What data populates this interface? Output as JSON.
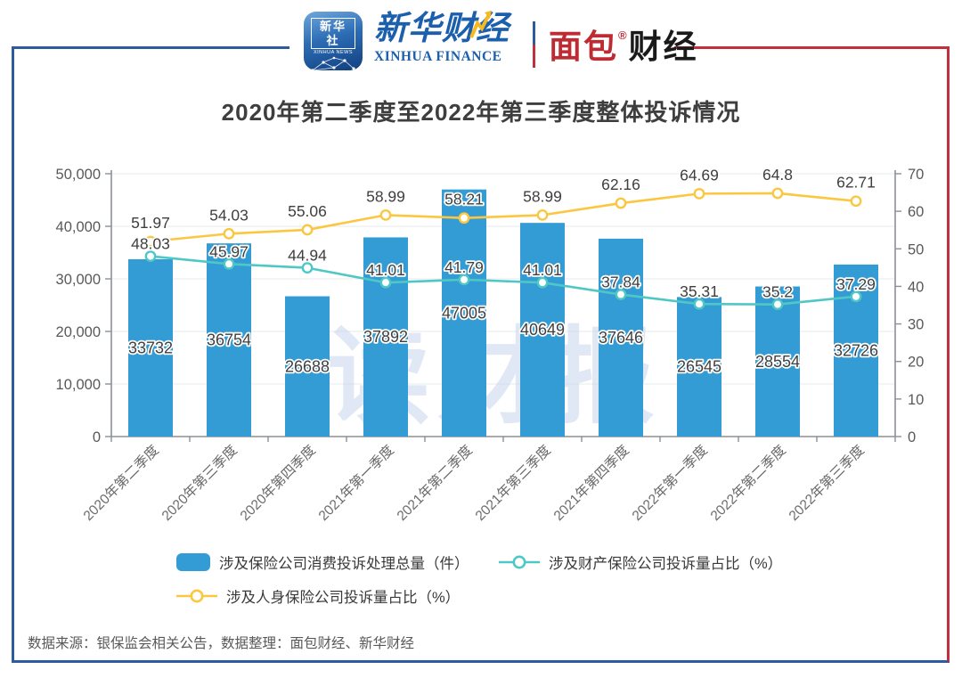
{
  "header": {
    "xinhua_news": {
      "cn": "新华社",
      "en": "XINHUA NEWS"
    },
    "xinhua_finance": {
      "cn": "新华财经",
      "en": "XINHUA FINANCE"
    },
    "mianbao": {
      "red": "面包",
      "black": "财经",
      "reg": "®"
    }
  },
  "title": "2020年第二季度至2022年第三季度整体投诉情况",
  "watermark": "读财报",
  "footer": "数据来源：银保监会相关公告，数据整理：面包财经、新华财经",
  "colors": {
    "frame_blue": "#2D5B9E",
    "frame_red": "#C0303D",
    "xinhua_blue": "#1C5FAD",
    "mianbao_red": "#BE2B33",
    "title_color": "#3E3E3E",
    "axis_text": "#595959",
    "xlabel_text": "#6A6A6A",
    "grid_color": "#E4E8ED",
    "axis_line": "#8A9096",
    "label_color": "#3F3F3F",
    "watermark_color": "#C9D7EE",
    "legend_text": "#3A3A3A"
  },
  "chart_data": {
    "type": "bar+line",
    "title": "2020年第二季度至2022年第三季度整体投诉情况",
    "categories": [
      "2020年第二季度",
      "2020年第三季度",
      "2020年第四季度",
      "2021年第一季度",
      "2021年第二季度",
      "2021年第三季度",
      "2021年第四季度",
      "2022年第一季度",
      "2022年第二季度",
      "2022年第三季度"
    ],
    "series": [
      {
        "name": "涉及保险公司消费投诉处理总量（件）",
        "type": "bar",
        "axis": "left",
        "color": "#339CD4",
        "values": [
          33732,
          36754,
          26688,
          37892,
          47005,
          40649,
          37646,
          26545,
          28554,
          32726
        ]
      },
      {
        "name": "涉及财产保险公司投诉量占比（%）",
        "type": "line",
        "axis": "right",
        "color": "#4FC8C5",
        "values": [
          48.03,
          45.97,
          44.94,
          41.01,
          41.79,
          41.01,
          37.84,
          35.31,
          35.2,
          37.29
        ]
      },
      {
        "name": "涉及人身保险公司投诉量占比（%）",
        "type": "line",
        "axis": "right",
        "color": "#FBC740",
        "values": [
          51.97,
          54.03,
          55.06,
          58.99,
          58.21,
          58.99,
          62.16,
          64.69,
          64.8,
          62.71
        ]
      }
    ],
    "left_axis": {
      "min": 0,
      "max": 50000,
      "step": 10000,
      "tick_labels": [
        "0",
        "10,000",
        "20,000",
        "30,000",
        "40,000",
        "50,000"
      ]
    },
    "right_axis": {
      "min": 0,
      "max": 70,
      "step": 10,
      "tick_labels": [
        "0",
        "10",
        "20",
        "30",
        "40",
        "50",
        "60",
        "70"
      ]
    },
    "grid": true,
    "legend_position": "bottom"
  }
}
